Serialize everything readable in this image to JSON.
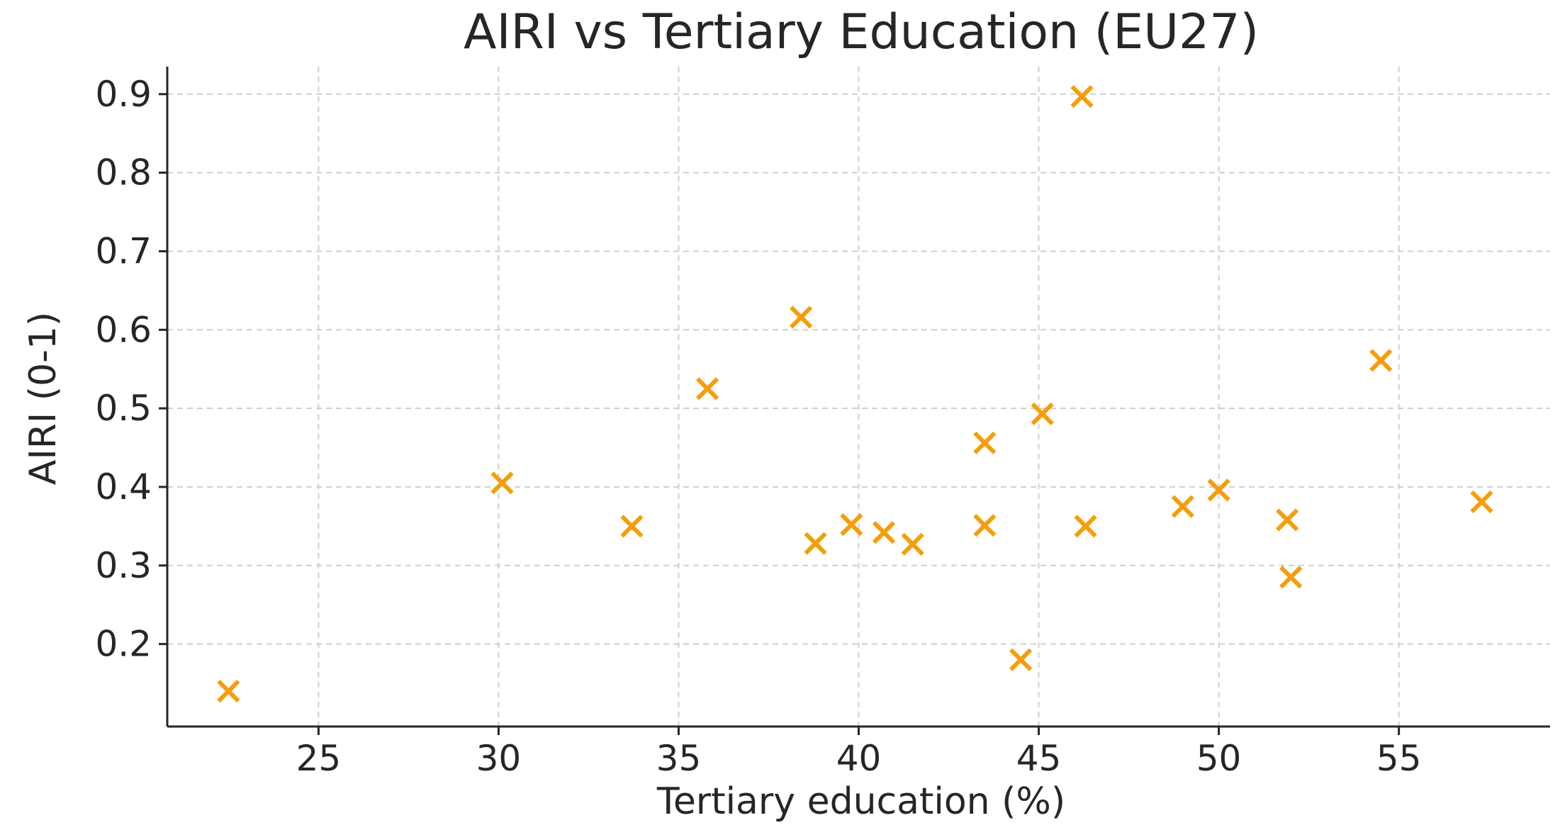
{
  "chart_data": {
    "type": "scatter",
    "title": "AIRI vs Tertiary Education (EU27)",
    "xlabel": "Tertiary education (%)",
    "ylabel": "AIRI (0-1)",
    "xlim": [
      20.8,
      59.2
    ],
    "ylim": [
      0.095,
      0.935
    ],
    "xticks": [
      25,
      30,
      35,
      40,
      45,
      50,
      55
    ],
    "yticks": [
      0.2,
      0.3,
      0.4,
      0.5,
      0.6,
      0.7,
      0.8,
      0.9
    ],
    "grid": true,
    "marker": "x",
    "color": "#f59e0b",
    "points": [
      {
        "x": 22.5,
        "y": 0.14
      },
      {
        "x": 30.1,
        "y": 0.405
      },
      {
        "x": 33.7,
        "y": 0.35
      },
      {
        "x": 35.8,
        "y": 0.525
      },
      {
        "x": 38.4,
        "y": 0.616
      },
      {
        "x": 38.8,
        "y": 0.328
      },
      {
        "x": 39.8,
        "y": 0.352
      },
      {
        "x": 40.7,
        "y": 0.342
      },
      {
        "x": 41.5,
        "y": 0.327
      },
      {
        "x": 43.5,
        "y": 0.456
      },
      {
        "x": 43.5,
        "y": 0.351
      },
      {
        "x": 44.5,
        "y": 0.18
      },
      {
        "x": 45.1,
        "y": 0.493
      },
      {
        "x": 46.2,
        "y": 0.897
      },
      {
        "x": 46.3,
        "y": 0.35
      },
      {
        "x": 49.0,
        "y": 0.375
      },
      {
        "x": 50.0,
        "y": 0.396
      },
      {
        "x": 51.9,
        "y": 0.358
      },
      {
        "x": 52.0,
        "y": 0.285
      },
      {
        "x": 54.5,
        "y": 0.561
      },
      {
        "x": 57.3,
        "y": 0.381
      }
    ]
  }
}
